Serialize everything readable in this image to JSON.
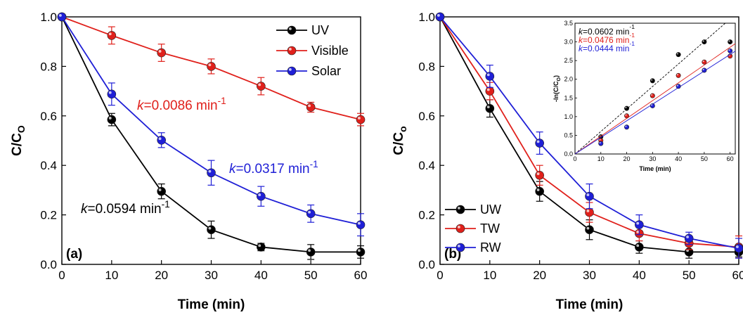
{
  "chart_data": [
    {
      "type": "line",
      "panel_label": "(a)",
      "xlabel": "Time (min)",
      "ylabel_main": "C/C",
      "ylabel_sub": "O",
      "xlim": [
        0,
        60
      ],
      "ylim": [
        0,
        1.0
      ],
      "xticks": [
        "0",
        "10",
        "20",
        "30",
        "40",
        "50",
        "60"
      ],
      "yticks": [
        "0.0",
        "0.2",
        "0.4",
        "0.6",
        "0.8",
        "1.0"
      ],
      "legend_position": "top-right",
      "x": [
        0,
        10,
        20,
        30,
        40,
        50,
        60
      ],
      "series": [
        {
          "name": "UV",
          "color": "#000000",
          "values": [
            1.0,
            0.585,
            0.295,
            0.14,
            0.07,
            0.05,
            0.05
          ],
          "errors": [
            0,
            0.025,
            0.03,
            0.035,
            0.015,
            0.03,
            0.025
          ]
        },
        {
          "name": "Visible",
          "color": "#e0201b",
          "values": [
            1.0,
            0.925,
            0.855,
            0.8,
            0.72,
            0.635,
            0.585
          ],
          "errors": [
            0,
            0.035,
            0.035,
            0.03,
            0.035,
            0.02,
            0.025
          ]
        },
        {
          "name": "Solar",
          "color": "#1f1fd6",
          "values": [
            1.0,
            0.688,
            0.502,
            0.37,
            0.275,
            0.205,
            0.16
          ],
          "errors": [
            0,
            0.045,
            0.03,
            0.05,
            0.04,
            0.035,
            0.045
          ]
        }
      ],
      "annotations": [
        {
          "prefix": "k",
          "value": "=0.0086 min",
          "sup": "-1",
          "color": "#e0201b"
        },
        {
          "prefix": "k",
          "value": "=0.0317 min",
          "sup": "-1",
          "color": "#1f1fd6"
        },
        {
          "prefix": "k",
          "value": "=0.0594 min",
          "sup": "-1",
          "color": "#000000"
        }
      ]
    },
    {
      "type": "line",
      "panel_label": "(b)",
      "xlabel": "Time (min)",
      "ylabel_main": "C/C",
      "ylabel_sub": "o",
      "xlim": [
        0,
        60
      ],
      "ylim": [
        0,
        1.0
      ],
      "xticks": [
        "0",
        "10",
        "20",
        "30",
        "40",
        "50",
        "60"
      ],
      "yticks": [
        "0.0",
        "0.2",
        "0.4",
        "0.6",
        "0.8",
        "1.0"
      ],
      "legend_position": "bottom-left",
      "x": [
        0,
        10,
        20,
        30,
        40,
        50,
        60
      ],
      "series": [
        {
          "name": "UW",
          "color": "#000000",
          "values": [
            1.0,
            0.63,
            0.295,
            0.14,
            0.07,
            0.05,
            0.05
          ],
          "errors": [
            0,
            0.035,
            0.04,
            0.04,
            0.025,
            0.025,
            0.02
          ]
        },
        {
          "name": "TW",
          "color": "#e0201b",
          "values": [
            1.0,
            0.7,
            0.36,
            0.21,
            0.125,
            0.085,
            0.07
          ],
          "errors": [
            0,
            0.035,
            0.04,
            0.04,
            0.03,
            0.025,
            0.045
          ]
        },
        {
          "name": "RW",
          "color": "#1f1fd6",
          "values": [
            1.0,
            0.76,
            0.49,
            0.275,
            0.16,
            0.105,
            0.065
          ],
          "errors": [
            0,
            0.045,
            0.045,
            0.05,
            0.04,
            0.025,
            0.04
          ]
        }
      ],
      "inset": {
        "type": "scatter",
        "xlabel": "Time (min)",
        "ylabel": "-ln(C/C",
        "ylabel_sub": "O",
        "ylabel_end": ")",
        "xlim": [
          0,
          62
        ],
        "ylim": [
          0,
          3.5
        ],
        "xticks": [
          "0",
          "10",
          "20",
          "30",
          "40",
          "50",
          "60"
        ],
        "yticks": [
          "0.0",
          "0.5",
          "1.0",
          "1.5",
          "2.0",
          "2.5",
          "3.0",
          "3.5"
        ],
        "x": [
          10,
          20,
          30,
          40,
          50,
          60
        ],
        "series": [
          {
            "color": "#000000",
            "values": [
              0.46,
              1.22,
              1.96,
              2.66,
              3.0,
              3.0
            ],
            "slope": 0.0602
          },
          {
            "color": "#e0201b",
            "values": [
              0.36,
              1.02,
              1.56,
              2.1,
              2.46,
              2.62
            ],
            "slope": 0.0476
          },
          {
            "color": "#1f1fd6",
            "values": [
              0.28,
              0.72,
              1.29,
              1.81,
              2.24,
              2.76
            ],
            "slope": 0.0444
          }
        ],
        "annotations": [
          {
            "prefix": "k",
            "value": "=0.0602 min",
            "sup": "-1",
            "color": "#000000"
          },
          {
            "prefix": "k",
            "value": "=0.0476 min",
            "sup": "-1",
            "color": "#e0201b"
          },
          {
            "prefix": "k",
            "value": "=0.0444 min",
            "sup": "-1",
            "color": "#1f1fd6"
          }
        ]
      }
    }
  ]
}
